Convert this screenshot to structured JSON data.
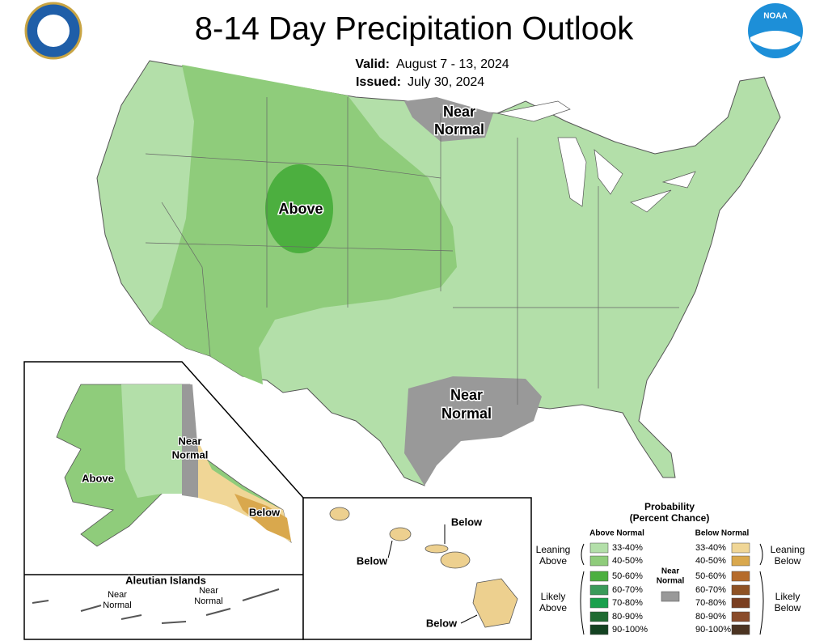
{
  "header": {
    "title": "8-14 Day Precipitation Outlook",
    "valid_label": "Valid:",
    "valid": "August 7 - 13, 2024",
    "issued_label": "Issued:",
    "issued": "July 30, 2024",
    "noaa_logo": "NOAA"
  },
  "conus": {
    "labels": [
      {
        "lines": [
          "Near",
          "Normal"
        ]
      },
      {
        "lines": [
          "Above"
        ]
      },
      {
        "lines": [
          "Near",
          "Normal"
        ]
      }
    ]
  },
  "alaska": {
    "labels": [
      {
        "lines": [
          "Above"
        ]
      },
      {
        "lines": [
          "Near",
          "Normal"
        ]
      },
      {
        "lines": [
          "Below"
        ]
      }
    ],
    "aleutian_title": "Aleutian Islands",
    "aleutian_labels": [
      {
        "lines": [
          "Near",
          "Normal"
        ]
      },
      {
        "lines": [
          "Near",
          "Normal"
        ]
      }
    ]
  },
  "hawaii": {
    "labels": [
      "Below",
      "Below",
      "Below"
    ]
  },
  "legend": {
    "title_lines": [
      "Probability",
      "(Percent Chance)"
    ],
    "above_header": "Above Normal",
    "below_header": "Below Normal",
    "near_label": [
      "Near",
      "Normal"
    ],
    "above_ranges": [
      "33-40%",
      "40-50%",
      "50-60%",
      "60-70%",
      "70-80%",
      "80-90%",
      "90-100%"
    ],
    "below_ranges": [
      "33-40%",
      "40-50%",
      "50-60%",
      "60-70%",
      "70-80%",
      "80-90%",
      "90-100%"
    ],
    "above_colors": [
      "#b3dfa9",
      "#8fcc7b",
      "#4caf3f",
      "#3a9a5a",
      "#19a04c",
      "#1f6b32",
      "#134221"
    ],
    "below_colors": [
      "#f0d696",
      "#d9a84d",
      "#b56b2b",
      "#8e5224",
      "#7a3e20",
      "#8a4b2a",
      "#4b3321"
    ],
    "near_color": "#999999",
    "above_groups": [
      [
        "Leaning",
        "Above"
      ],
      [
        "Likely",
        "Above"
      ]
    ],
    "below_groups": [
      [
        "Leaning",
        "Below"
      ],
      [
        "Likely",
        "Below"
      ]
    ]
  }
}
